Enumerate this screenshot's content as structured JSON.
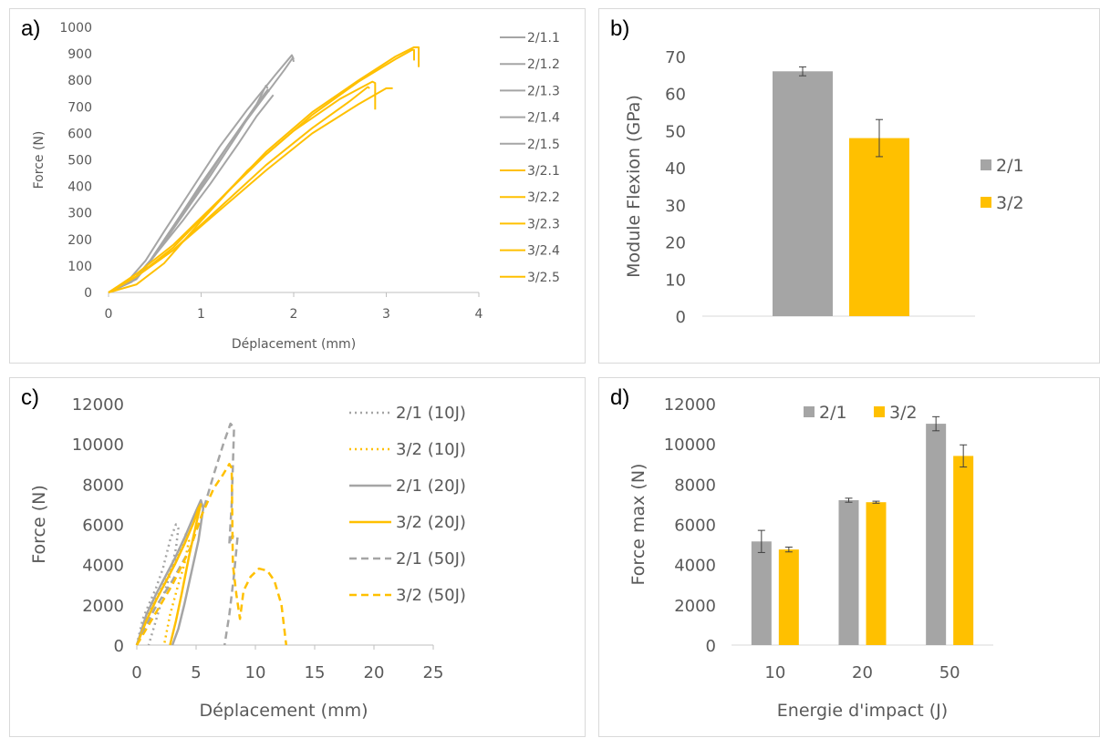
{
  "chart_data": [
    {
      "id": "a",
      "panel_label": "a)",
      "type": "line",
      "xlabel": "Déplacement (mm)",
      "ylabel": "Force (N)",
      "xlim": [
        0,
        4
      ],
      "ylim": [
        0,
        1000
      ],
      "xticks": [
        "0",
        "1",
        "2",
        "3",
        "4"
      ],
      "yticks": [
        "0",
        "100",
        "200",
        "300",
        "400",
        "500",
        "600",
        "700",
        "800",
        "900",
        "1000"
      ],
      "legend_position": "right",
      "series": [
        {
          "name": "2/1.1",
          "color": "#a5a5a5",
          "x": [
            0,
            0.2,
            0.4,
            0.6,
            0.9,
            1.2,
            1.5,
            1.8,
            1.98,
            2.0
          ],
          "y": [
            0,
            40,
            120,
            230,
            390,
            550,
            690,
            820,
            895,
            880
          ]
        },
        {
          "name": "2/1.2",
          "color": "#a5a5a5",
          "x": [
            0,
            0.25,
            0.45,
            0.7,
            1.0,
            1.3,
            1.6,
            1.9,
            1.99,
            2.0
          ],
          "y": [
            0,
            40,
            120,
            250,
            410,
            560,
            700,
            840,
            885,
            870
          ]
        },
        {
          "name": "2/1.3",
          "color": "#a5a5a5",
          "x": [
            0,
            0.25,
            0.45,
            0.7,
            1.0,
            1.3,
            1.6,
            1.7,
            1.72
          ],
          "y": [
            0,
            40,
            120,
            250,
            400,
            560,
            710,
            780,
            770
          ]
        },
        {
          "name": "2/1.4",
          "color": "#a5a5a5",
          "x": [
            0,
            0.3,
            0.5,
            0.8,
            1.1,
            1.4,
            1.6,
            1.72,
            1.73
          ],
          "y": [
            0,
            50,
            140,
            290,
            440,
            600,
            710,
            765,
            755
          ]
        },
        {
          "name": "2/1.5",
          "color": "#a5a5a5",
          "x": [
            0,
            0.3,
            0.5,
            0.8,
            1.1,
            1.4,
            1.6,
            1.78
          ],
          "y": [
            0,
            50,
            140,
            270,
            410,
            560,
            665,
            745
          ]
        },
        {
          "name": "3/2.1",
          "color": "#ffc000",
          "x": [
            0,
            0.3,
            0.7,
            1.2,
            1.7,
            2.2,
            2.7,
            3.1,
            3.3,
            3.35,
            3.35
          ],
          "y": [
            0,
            60,
            170,
            350,
            530,
            680,
            800,
            890,
            925,
            925,
            850
          ]
        },
        {
          "name": "3/2.2",
          "color": "#ffc000",
          "x": [
            0,
            0.3,
            0.7,
            1.2,
            1.7,
            2.2,
            2.7,
            3.1,
            3.28,
            3.3,
            3.3
          ],
          "y": [
            0,
            70,
            180,
            350,
            520,
            670,
            795,
            880,
            915,
            915,
            875
          ]
        },
        {
          "name": "3/2.3",
          "color": "#ffc000",
          "x": [
            0,
            0.3,
            0.6,
            1.0,
            1.5,
            2.0,
            2.5,
            2.85,
            2.88,
            2.88
          ],
          "y": [
            0,
            30,
            110,
            270,
            460,
            610,
            730,
            795,
            790,
            690
          ]
        },
        {
          "name": "3/2.4",
          "color": "#ffc000",
          "x": [
            0,
            0.3,
            0.7,
            1.2,
            1.7,
            2.2,
            2.6,
            2.8,
            2.82
          ],
          "y": [
            0,
            60,
            160,
            320,
            480,
            620,
            720,
            775,
            770
          ]
        },
        {
          "name": "3/2.5",
          "color": "#ffc000",
          "x": [
            0,
            0.3,
            0.7,
            1.2,
            1.7,
            2.2,
            2.7,
            3.0,
            3.07
          ],
          "y": [
            0,
            60,
            160,
            310,
            460,
            600,
            710,
            770,
            770
          ]
        }
      ]
    },
    {
      "id": "b",
      "panel_label": "b)",
      "type": "bar",
      "ylabel": "Module Flexion (GPa)",
      "ylim": [
        0,
        70
      ],
      "yticks": [
        "0",
        "10",
        "20",
        "30",
        "40",
        "50",
        "60",
        "70"
      ],
      "legend_position": "right",
      "series": [
        {
          "name": "2/1",
          "color": "#a5a5a5",
          "value": 66,
          "error": 1.2
        },
        {
          "name": "3/2",
          "color": "#ffc000",
          "value": 48,
          "error": 5
        }
      ]
    },
    {
      "id": "c",
      "panel_label": "c)",
      "type": "line",
      "xlabel": "Déplacement (mm)",
      "ylabel": "Force (N)",
      "xlim": [
        0,
        25
      ],
      "ylim": [
        0,
        12000
      ],
      "xticks": [
        "0",
        "5",
        "10",
        "15",
        "20",
        "25"
      ],
      "yticks": [
        "0",
        "2000",
        "4000",
        "6000",
        "8000",
        "10000",
        "12000"
      ],
      "legend_position": "top-right",
      "series": [
        {
          "name": "2/1 (10J)",
          "color": "#a5a5a5",
          "style": "dotted",
          "x": [
            0,
            0.5,
            1.0,
            1.6,
            2.2,
            2.8,
            3.3,
            3.5,
            3.3,
            2.8,
            2.0,
            1.4,
            1.0
          ],
          "y": [
            0,
            1300,
            2000,
            2800,
            3800,
            5200,
            6000,
            5800,
            4800,
            3500,
            2000,
            800,
            0
          ]
        },
        {
          "name": "3/2 (10J)",
          "color": "#ffc000",
          "style": "dotted",
          "x": [
            0,
            0.6,
            1.2,
            2.0,
            2.8,
            3.6,
            4.2,
            4.4,
            4.0,
            3.4,
            2.8,
            2.3
          ],
          "y": [
            0,
            1000,
            1800,
            2700,
            3600,
            4700,
            5600,
            5200,
            4000,
            2800,
            1500,
            0
          ]
        },
        {
          "name": "2/1 (20J)",
          "color": "#a5a5a5",
          "style": "solid",
          "x": [
            0,
            0.8,
            1.6,
            2.4,
            3.2,
            4.0,
            4.8,
            5.4,
            5.6,
            5.2,
            4.6,
            4.0,
            3.5,
            3.0
          ],
          "y": [
            0,
            1500,
            2500,
            3400,
            4300,
            5300,
            6400,
            7200,
            6800,
            5200,
            3600,
            2000,
            800,
            0
          ]
        },
        {
          "name": "3/2 (20J)",
          "color": "#ffc000",
          "style": "solid",
          "x": [
            0,
            0.8,
            1.6,
            2.4,
            3.2,
            4.0,
            4.8,
            5.2,
            5.4,
            5.0,
            4.4,
            3.8,
            3.3,
            2.8
          ],
          "y": [
            0,
            1200,
            2200,
            3100,
            4000,
            5000,
            6100,
            6800,
            7000,
            6000,
            4400,
            2600,
            1200,
            0
          ]
        },
        {
          "name": "2/1 (50J)",
          "color": "#a5a5a5",
          "style": "dashed",
          "x": [
            0,
            1.5,
            3.0,
            4.5,
            5.5,
            6.5,
            7.3,
            7.9,
            8.2,
            8.0,
            7.8,
            8.0,
            8.5,
            8.2,
            7.8,
            7.4
          ],
          "y": [
            0,
            1800,
            3200,
            4800,
            6500,
            8500,
            10000,
            11000,
            10800,
            7000,
            5000,
            5400,
            5400,
            3500,
            1500,
            0
          ]
        },
        {
          "name": "3/2 (50J)",
          "color": "#ffc000",
          "style": "dashed",
          "x": [
            0,
            1.5,
            3.0,
            4.5,
            5.5,
            6.5,
            7.3,
            7.8,
            8.0,
            8.1,
            8.4,
            8.7,
            9.0,
            9.6,
            10.3,
            11.0,
            11.6,
            12.2,
            12.6
          ],
          "y": [
            0,
            1500,
            3000,
            4800,
            6500,
            7800,
            8500,
            9000,
            8800,
            4000,
            2500,
            1300,
            2700,
            3400,
            3800,
            3700,
            3200,
            2000,
            0
          ]
        }
      ]
    },
    {
      "id": "d",
      "panel_label": "d)",
      "type": "bar",
      "xlabel": "Energie d'impact (J)",
      "ylabel": "Force max (N)",
      "categories": [
        "10",
        "20",
        "50"
      ],
      "ylim": [
        0,
        12000
      ],
      "yticks": [
        "0",
        "2000",
        "4000",
        "6000",
        "8000",
        "10000",
        "12000"
      ],
      "legend_position": "top",
      "series": [
        {
          "name": "2/1",
          "color": "#a5a5a5",
          "values": [
            5150,
            7200,
            11000
          ],
          "errors": [
            550,
            100,
            350
          ]
        },
        {
          "name": "3/2",
          "color": "#ffc000",
          "values": [
            4750,
            7100,
            9400
          ],
          "errors": [
            120,
            50,
            550
          ]
        }
      ]
    }
  ]
}
